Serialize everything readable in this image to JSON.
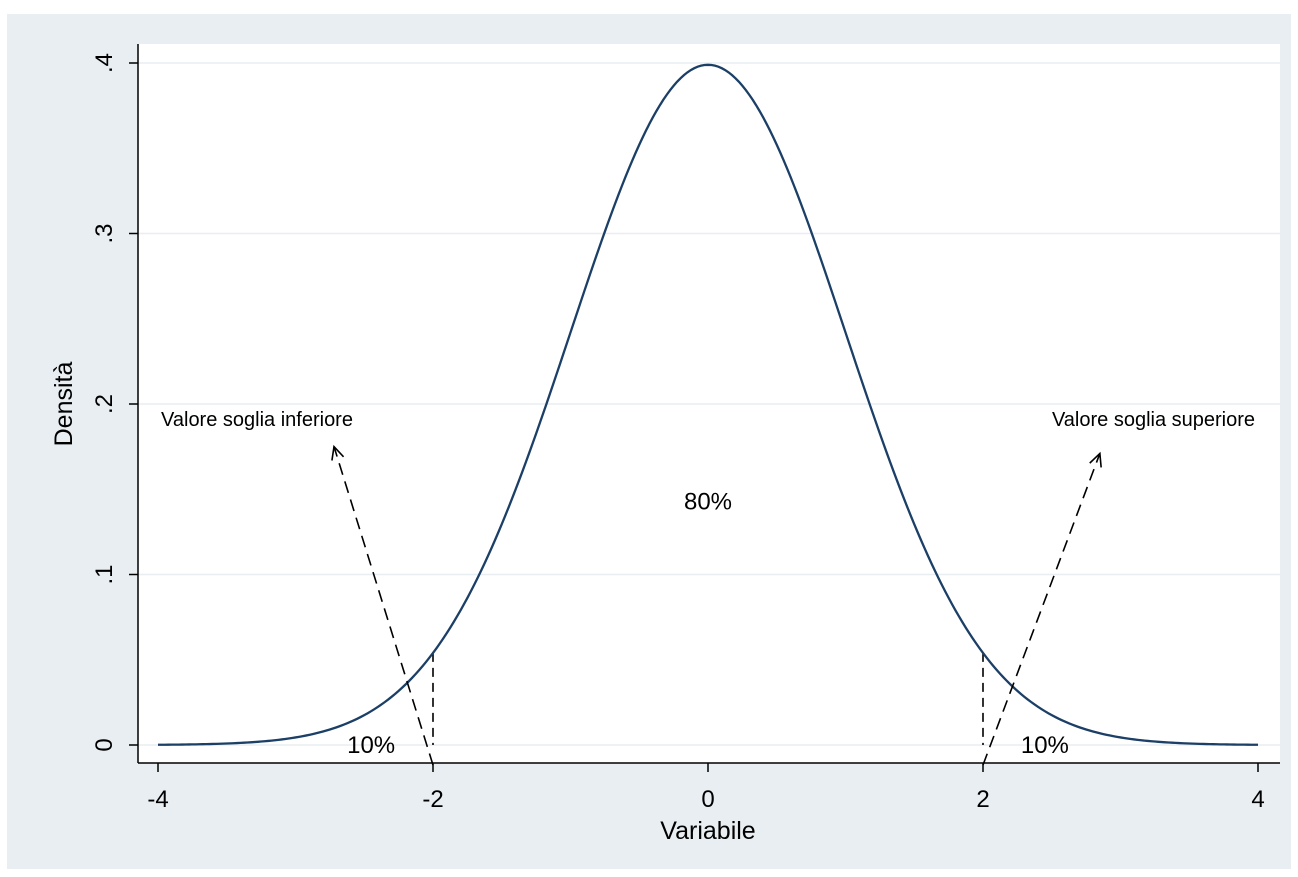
{
  "chart_data": {
    "type": "line",
    "title": "",
    "xlabel": "Variabile",
    "ylabel": "Densità",
    "xlim": [
      -4,
      4
    ],
    "ylim": [
      0,
      0.4
    ],
    "grid": true,
    "x_ticks": [
      {
        "value": -4,
        "label": "-4"
      },
      {
        "value": -2,
        "label": "-2"
      },
      {
        "value": 0,
        "label": "0"
      },
      {
        "value": 2,
        "label": "2"
      },
      {
        "value": 4,
        "label": "4"
      }
    ],
    "y_ticks": [
      {
        "value": 0,
        "label": "0"
      },
      {
        "value": 0.1,
        "label": ".1"
      },
      {
        "value": 0.2,
        "label": ".2"
      },
      {
        "value": 0.3,
        "label": ".3"
      },
      {
        "value": 0.4,
        "label": ".4"
      }
    ],
    "series": [
      {
        "x": [
          -4,
          -3.5,
          -3,
          -2.5,
          -2,
          -1.5,
          -1,
          -0.5,
          0,
          0.5,
          1,
          1.5,
          2,
          2.5,
          3,
          3.5,
          4
        ],
        "y": [
          0.0001,
          0.0009,
          0.0044,
          0.0175,
          0.054,
          0.1295,
          0.242,
          0.3521,
          0.3989,
          0.3521,
          0.242,
          0.1295,
          0.054,
          0.0175,
          0.0044,
          0.0009,
          0.0001
        ]
      }
    ],
    "thresholds": [
      {
        "x": -2,
        "y_top": 0.054
      },
      {
        "x": 2,
        "y_top": 0.054
      }
    ],
    "annotations": [
      {
        "id": "ann-lower",
        "text": "Valore soglia inferiore",
        "x": -3.28,
        "y": 0.187,
        "anchor": "middle",
        "arrow_from": [
          -2,
          0
        ],
        "arrow_to": [
          -2.72,
          0.175
        ]
      },
      {
        "id": "ann-upper",
        "text": "Valore soglia superiore",
        "x": 3.24,
        "y": 0.187,
        "anchor": "middle",
        "arrow_from": [
          2,
          0
        ],
        "arrow_to": [
          2.85,
          0.171
        ]
      },
      {
        "id": "ann-center",
        "text": "80%",
        "x": 0,
        "y": 0.138,
        "anchor": "middle"
      },
      {
        "id": "ann-left-tail",
        "text": "10%",
        "x": -2.45,
        "y": 0,
        "anchor": "middle"
      },
      {
        "id": "ann-right-tail",
        "text": "10%",
        "x": 2.45,
        "y": 0,
        "anchor": "middle"
      }
    ],
    "colors": {
      "outer_background": "#e9eef2",
      "plot_background": "#ffffff",
      "curve": "#1b3f66",
      "grid": "#e9eef2",
      "axis": "#000000"
    }
  }
}
